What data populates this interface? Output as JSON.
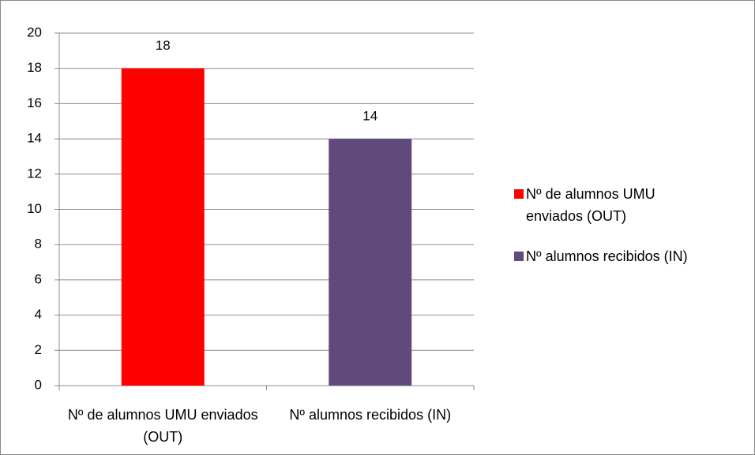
{
  "chart_data": {
    "type": "bar",
    "categories": [
      "Nº  de alumnos UMU enviados (OUT)",
      "Nº alumnos recibidos (IN)"
    ],
    "values": [
      18,
      14
    ],
    "colors": [
      "#ff0000",
      "#604a7b"
    ],
    "ylim": [
      0,
      20
    ],
    "yticks": [
      0,
      2,
      4,
      6,
      8,
      10,
      12,
      14,
      16,
      18,
      20
    ],
    "grid": true,
    "legend": "right"
  }
}
